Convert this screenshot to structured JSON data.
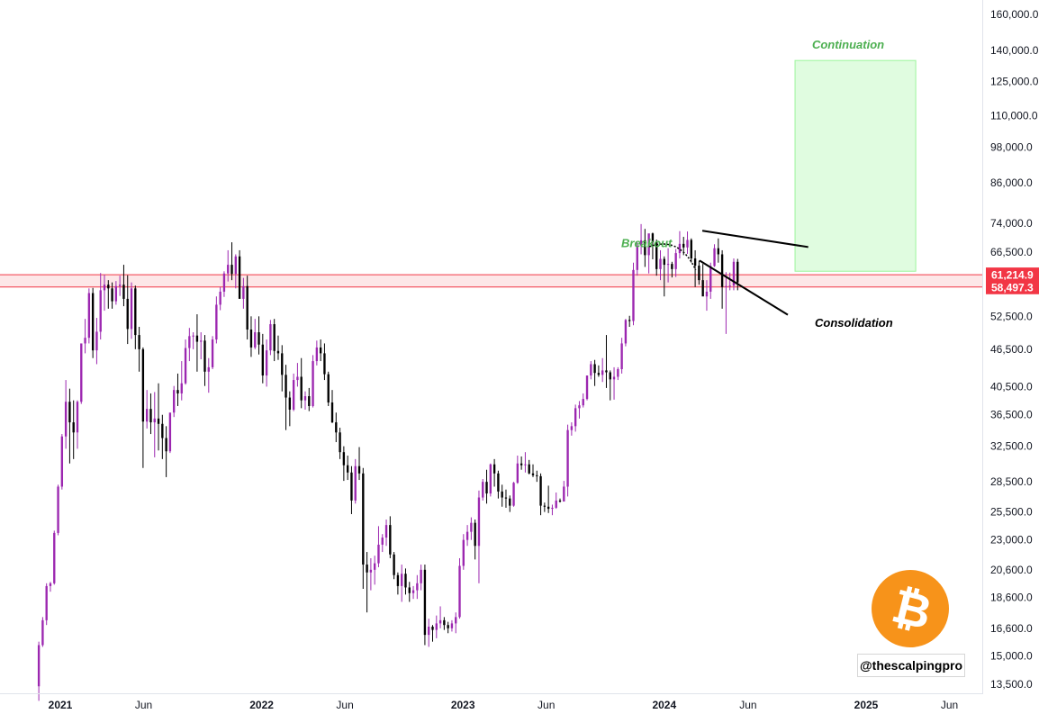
{
  "chart_data": {
    "type": "candlestick",
    "title": "",
    "xlabel": "",
    "ylabel": "",
    "y_scale": "log",
    "ylim": [
      13000,
      165000
    ],
    "x_range": [
      "2020-11-20",
      "2025-07-20"
    ],
    "grid": false,
    "y_ticks": [
      {
        "value": 160000,
        "label": "160,000.0"
      },
      {
        "value": 140000,
        "label": "140,000.0"
      },
      {
        "value": 125000,
        "label": "125,000.0"
      },
      {
        "value": 110000,
        "label": "110,000.0"
      },
      {
        "value": 98000,
        "label": "98,000.0"
      },
      {
        "value": 86000,
        "label": "86,000.0"
      },
      {
        "value": 74000,
        "label": "74,000.0"
      },
      {
        "value": 66500,
        "label": "66,500.0"
      },
      {
        "value": 52500,
        "label": "52,500.0"
      },
      {
        "value": 46500,
        "label": "46,500.0"
      },
      {
        "value": 40500,
        "label": "40,500.0"
      },
      {
        "value": 36500,
        "label": "36,500.0"
      },
      {
        "value": 32500,
        "label": "32,500.0"
      },
      {
        "value": 28500,
        "label": "28,500.0"
      },
      {
        "value": 25500,
        "label": "25,500.0"
      },
      {
        "value": 23000,
        "label": "23,000.0"
      },
      {
        "value": 20600,
        "label": "20,600.0"
      },
      {
        "value": 18600,
        "label": "18,600.0"
      },
      {
        "value": 16600,
        "label": "16,600.0"
      },
      {
        "value": 15000,
        "label": "15,000.0"
      },
      {
        "value": 13500,
        "label": "13,500.0"
      }
    ],
    "x_ticks": [
      {
        "date": "2021-01-01",
        "label": "2021",
        "bold": true
      },
      {
        "date": "2021-06-01",
        "label": "Jun",
        "bold": false
      },
      {
        "date": "2022-01-01",
        "label": "2022",
        "bold": true
      },
      {
        "date": "2022-06-01",
        "label": "Jun",
        "bold": false
      },
      {
        "date": "2023-01-01",
        "label": "2023",
        "bold": true
      },
      {
        "date": "2023-06-01",
        "label": "Jun",
        "bold": false
      },
      {
        "date": "2024-01-01",
        "label": "2024",
        "bold": true
      },
      {
        "date": "2024-06-01",
        "label": "Jun",
        "bold": false
      },
      {
        "date": "2025-01-01",
        "label": "2025",
        "bold": true
      },
      {
        "date": "2025-06-01",
        "label": "Jun",
        "bold": false
      }
    ],
    "price_labels": [
      {
        "value": 61214.9,
        "label": "61,214.9"
      },
      {
        "value": 58497.3,
        "label": "58,497.3"
      }
    ],
    "support_zone": {
      "low": 58497.3,
      "high": 61214.9,
      "color": "#f23645"
    },
    "target_box": {
      "from": "2024-08-25",
      "to": "2025-04-01",
      "low": 62000,
      "high": 135000,
      "color": "#00e600"
    },
    "colors": {
      "up": "#9c27b0",
      "up_accent": "#8a00ff",
      "down": "#000000",
      "label_bg": "#f23645",
      "annotation_green": "#4caf50"
    },
    "trendlines": [
      {
        "name": "flag-upper-line",
        "p1": {
          "date": "2024-03-10",
          "value": 72000
        },
        "p2": {
          "date": "2024-09-18",
          "value": 67800
        }
      },
      {
        "name": "flag-lower-line",
        "p1": {
          "date": "2024-03-05",
          "value": 64500
        },
        "p2": {
          "date": "2024-08-12",
          "value": 52800
        }
      }
    ],
    "annotations": [
      {
        "name": "breakout-label",
        "text": "Breakout",
        "date": "2023-10-15",
        "value": 67800,
        "color": "#4caf50"
      },
      {
        "name": "continuation-label",
        "text": "Continuation",
        "date": "2024-09-25",
        "value": 141000,
        "color": "#4caf50"
      },
      {
        "name": "consolidation-label",
        "text": "Consolidation",
        "date": "2024-09-30",
        "value": 50500,
        "color": "#000000"
      }
    ],
    "breakout_arrow": {
      "from": {
        "date": "2023-12-05",
        "value": 67900
      },
      "to": {
        "date": "2024-02-27",
        "value": 62300
      }
    },
    "weekly_candles": [
      [
        13400,
        15800,
        12700,
        15600
      ],
      [
        15600,
        17300,
        15500,
        17100
      ],
      [
        17100,
        19600,
        16800,
        19400
      ],
      [
        19400,
        19700,
        19000,
        19600
      ],
      [
        19600,
        23800,
        19500,
        23600
      ],
      [
        23600,
        28200,
        23400,
        28000
      ],
      [
        28000,
        34000,
        27700,
        33700
      ],
      [
        33700,
        41500,
        32200,
        38300
      ],
      [
        38300,
        40200,
        30500,
        35500
      ],
      [
        35500,
        38500,
        31000,
        34200
      ],
      [
        34200,
        38500,
        32200,
        38300
      ],
      [
        38300,
        44000,
        38000,
        47500
      ],
      [
        47500,
        52000,
        45800,
        48500
      ],
      [
        48500,
        58200,
        47500,
        57200
      ],
      [
        57200,
        58300,
        45000,
        46300
      ],
      [
        46300,
        52200,
        44000,
        49600
      ],
      [
        49600,
        61600,
        48200,
        57800
      ],
      [
        57800,
        61200,
        53600,
        59000
      ],
      [
        59000,
        60000,
        54000,
        58200
      ],
      [
        58200,
        59500,
        54000,
        55500
      ],
      [
        55500,
        59800,
        54800,
        58700
      ],
      [
        58700,
        61000,
        56600,
        59000
      ],
      [
        59000,
        63500,
        54500,
        56000
      ],
      [
        56000,
        61100,
        47400,
        50100
      ],
      [
        50100,
        59500,
        48300,
        58200
      ],
      [
        58200,
        58800,
        46500,
        49000
      ],
      [
        49000,
        50500,
        42800,
        46500
      ],
      [
        46500,
        46800,
        30000,
        35600
      ],
      [
        35600,
        40000,
        34700,
        37300
      ],
      [
        37300,
        39500,
        34000,
        35500
      ],
      [
        35500,
        39700,
        31200,
        36000
      ],
      [
        36000,
        41000,
        32000,
        35300
      ],
      [
        35300,
        36500,
        31000,
        33500
      ],
      [
        33500,
        35000,
        29000,
        31900
      ],
      [
        31900,
        36500,
        31700,
        36800
      ],
      [
        36800,
        40600,
        36200,
        40000
      ],
      [
        40000,
        42500,
        37700,
        39500
      ],
      [
        39500,
        44500,
        38500,
        41000
      ],
      [
        41000,
        48200,
        40800,
        46700
      ],
      [
        46700,
        50300,
        44500,
        48800
      ],
      [
        48800,
        49500,
        46500,
        48900
      ],
      [
        48900,
        52900,
        42800,
        47800
      ],
      [
        47800,
        49500,
        44800,
        48000
      ],
      [
        48000,
        49000,
        40600,
        42800
      ],
      [
        42800,
        45000,
        39600,
        43500
      ],
      [
        43500,
        48800,
        43200,
        48200
      ],
      [
        48200,
        56500,
        47500,
        54800
      ],
      [
        54800,
        58500,
        53700,
        57500
      ],
      [
        57500,
        62000,
        56400,
        61500
      ],
      [
        61500,
        67000,
        59700,
        63500
      ],
      [
        63500,
        69000,
        60000,
        61400
      ],
      [
        61400,
        66000,
        58200,
        65500
      ],
      [
        65500,
        67000,
        57900,
        56000
      ],
      [
        56000,
        60500,
        54000,
        58700
      ],
      [
        58700,
        61000,
        48200,
        50000
      ],
      [
        50000,
        52500,
        45200,
        46800
      ],
      [
        46800,
        52000,
        46500,
        49500
      ],
      [
        49500,
        52500,
        45600,
        47300
      ],
      [
        47300,
        49200,
        41000,
        42200
      ],
      [
        42200,
        48200,
        40500,
        46300
      ],
      [
        46300,
        51800,
        45500,
        51000
      ],
      [
        51000,
        52000,
        44500,
        46200
      ],
      [
        46200,
        48900,
        44700,
        45800
      ],
      [
        45800,
        47200,
        39800,
        42300
      ],
      [
        42300,
        43900,
        34500,
        38900
      ],
      [
        38900,
        39800,
        35000,
        37200
      ],
      [
        37200,
        42500,
        37000,
        41500
      ],
      [
        41500,
        44200,
        40500,
        42000
      ],
      [
        42000,
        45000,
        37400,
        38500
      ],
      [
        38500,
        39800,
        37200,
        39100
      ],
      [
        39100,
        40300,
        37000,
        37700
      ],
      [
        37700,
        45500,
        37500,
        44500
      ],
      [
        44500,
        48000,
        43800,
        46800
      ],
      [
        46800,
        48200,
        44500,
        45800
      ],
      [
        45800,
        47500,
        41500,
        42400
      ],
      [
        42400,
        42800,
        37700,
        38200
      ],
      [
        38200,
        40000,
        35400,
        35500
      ],
      [
        35500,
        36800,
        33000,
        34200
      ],
      [
        34200,
        34800,
        31000,
        31800
      ],
      [
        31800,
        32500,
        28600,
        30300
      ],
      [
        30300,
        31400,
        28700,
        29500
      ],
      [
        29500,
        30200,
        25300,
        26600
      ],
      [
        26600,
        31000,
        26300,
        30200
      ],
      [
        30200,
        32400,
        28700,
        29400
      ],
      [
        29400,
        30000,
        19200,
        21000
      ],
      [
        21000,
        22000,
        17600,
        20400
      ],
      [
        20400,
        21500,
        19100,
        20600
      ],
      [
        20600,
        21700,
        19500,
        21100
      ],
      [
        21100,
        24200,
        20800,
        22600
      ],
      [
        22600,
        23500,
        22000,
        23200
      ],
      [
        23200,
        24800,
        22500,
        24300
      ],
      [
        24300,
        25100,
        21500,
        21800
      ],
      [
        21800,
        22000,
        19900,
        20200
      ],
      [
        20200,
        20400,
        18800,
        19400
      ],
      [
        19400,
        21000,
        18300,
        20300
      ],
      [
        20300,
        20700,
        18800,
        19300
      ],
      [
        19300,
        19700,
        18300,
        18900
      ],
      [
        18900,
        19400,
        18500,
        19100
      ],
      [
        19100,
        20200,
        18500,
        19600
      ],
      [
        19600,
        21000,
        19100,
        20600
      ],
      [
        20600,
        21000,
        15600,
        16200
      ],
      [
        16200,
        17200,
        15500,
        16700
      ],
      [
        16700,
        16800,
        15800,
        16500
      ],
      [
        16500,
        17400,
        16000,
        16900
      ],
      [
        16900,
        18000,
        16600,
        17100
      ],
      [
        17100,
        17300,
        16500,
        16800
      ],
      [
        16800,
        17000,
        16300,
        16600
      ],
      [
        16600,
        17100,
        16400,
        16900
      ],
      [
        16900,
        17600,
        16300,
        17300
      ],
      [
        17300,
        21500,
        17200,
        20900
      ],
      [
        20900,
        23500,
        20600,
        23000
      ],
      [
        23000,
        24300,
        22500,
        23700
      ],
      [
        23700,
        25000,
        23000,
        24500
      ],
      [
        24500,
        24800,
        21400,
        22500
      ],
      [
        22500,
        27600,
        19600,
        26900
      ],
      [
        26900,
        28800,
        26600,
        28500
      ],
      [
        28500,
        29800,
        26300,
        27300
      ],
      [
        27300,
        30500,
        27000,
        30400
      ],
      [
        30400,
        31000,
        28000,
        29400
      ],
      [
        29400,
        29700,
        26800,
        27500
      ],
      [
        27500,
        28200,
        26000,
        26900
      ],
      [
        26900,
        27700,
        25900,
        26800
      ],
      [
        26800,
        27100,
        25500,
        26100
      ],
      [
        26100,
        28500,
        26000,
        28400
      ],
      [
        28400,
        31400,
        28300,
        30500
      ],
      [
        30500,
        31300,
        29800,
        30300
      ],
      [
        30300,
        31800,
        29500,
        30400
      ],
      [
        30400,
        30900,
        29300,
        29400
      ],
      [
        29400,
        30400,
        29000,
        29200
      ],
      [
        29200,
        29700,
        28500,
        29100
      ],
      [
        29100,
        29400,
        25200,
        26100
      ],
      [
        26100,
        26400,
        25500,
        26000
      ],
      [
        26000,
        28100,
        25400,
        25800
      ],
      [
        25800,
        26200,
        25200,
        25900
      ],
      [
        25900,
        27400,
        25800,
        26600
      ],
      [
        26600,
        26800,
        26400,
        26500
      ],
      [
        26500,
        28600,
        26700,
        28000
      ],
      [
        28000,
        35200,
        27000,
        34500
      ],
      [
        34500,
        35500,
        33800,
        35000
      ],
      [
        35000,
        37900,
        34300,
        37400
      ],
      [
        37400,
        38400,
        36000,
        37800
      ],
      [
        37800,
        39500,
        37500,
        38700
      ],
      [
        38700,
        42000,
        38500,
        42200
      ],
      [
        42200,
        44500,
        41600,
        44000
      ],
      [
        44000,
        44700,
        40600,
        42600
      ],
      [
        42600,
        43800,
        42000,
        42300
      ],
      [
        42300,
        45000,
        41200,
        43000
      ],
      [
        43000,
        49000,
        40300,
        42700
      ],
      [
        42700,
        43000,
        38500,
        41600
      ],
      [
        41600,
        43500,
        38600,
        42000
      ],
      [
        42000,
        43500,
        41500,
        43200
      ],
      [
        43200,
        48500,
        42500,
        47500
      ],
      [
        47500,
        52000,
        47000,
        51800
      ],
      [
        51800,
        52600,
        50500,
        51600
      ],
      [
        51600,
        64000,
        50800,
        62300
      ],
      [
        62300,
        69000,
        61000,
        68200
      ],
      [
        68200,
        73800,
        66000,
        69500
      ],
      [
        69500,
        72500,
        63000,
        65800
      ],
      [
        65800,
        70800,
        61500,
        71300
      ],
      [
        71300,
        71500,
        64800,
        69000
      ],
      [
        69000,
        69700,
        61000,
        62500
      ],
      [
        62500,
        67000,
        60000,
        64900
      ],
      [
        64900,
        65500,
        56500,
        63500
      ],
      [
        63500,
        67500,
        59500,
        63700
      ],
      [
        63700,
        64200,
        60600,
        62500
      ],
      [
        62500,
        67300,
        60700,
        66300
      ],
      [
        66300,
        71900,
        65000,
        68600
      ],
      [
        68600,
        70400,
        65800,
        67700
      ],
      [
        67700,
        71800,
        66100,
        69600
      ],
      [
        69600,
        70000,
        64000,
        65000
      ],
      [
        65000,
        67000,
        58500,
        63300
      ],
      [
        63300,
        64500,
        59000,
        60000
      ],
      [
        60000,
        63700,
        57500,
        56500
      ],
      [
        56500,
        60000,
        53600,
        57500
      ],
      [
        57500,
        64000,
        56000,
        63200
      ],
      [
        63200,
        68500,
        63000,
        67500
      ],
      [
        67500,
        70000,
        64000,
        66000
      ],
      [
        66000,
        67000,
        54000,
        58500
      ],
      [
        58500,
        61800,
        49200,
        58700
      ],
      [
        58700,
        61700,
        57800,
        58800
      ],
      [
        58800,
        65000,
        57800,
        64200
      ],
      [
        64200,
        64900,
        57800,
        59500
      ]
    ]
  },
  "watermark": {
    "handle": "@thescalpingpro"
  },
  "logo": {
    "glyph": "₿",
    "color": "#f7931a"
  }
}
